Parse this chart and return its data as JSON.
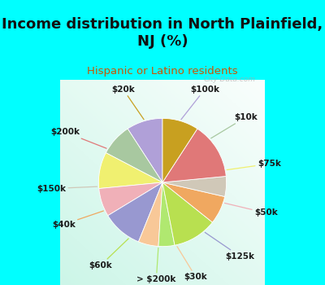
{
  "title": "Income distribution in North Plainfield,\nNJ (%)",
  "subtitle": "Hispanic or Latino residents",
  "title_color": "#111111",
  "subtitle_color": "#cc5500",
  "bg_cyan": "#00ffff",
  "watermark": "City-Data.com",
  "labels": [
    "$100k",
    "$10k",
    "$75k",
    "$50k",
    "$125k",
    "$30k",
    "> $200k",
    "$60k",
    "$40k",
    "$150k",
    "$200k",
    "$20k"
  ],
  "values": [
    9,
    8,
    9,
    7,
    10,
    5,
    4,
    11,
    7,
    5,
    14,
    9
  ],
  "colors": [
    "#b0a0d8",
    "#a8c8a0",
    "#f0f070",
    "#f0b0b8",
    "#9898d0",
    "#f8c898",
    "#b0e870",
    "#b8e050",
    "#f0a860",
    "#d0c8b8",
    "#e07878",
    "#c8a020"
  ],
  "start_angle": 90,
  "label_fontsize": 7.5,
  "label_fontweight": "bold",
  "label_color": "#1a1a1a",
  "title_fontsize": 13,
  "subtitle_fontsize": 9.5
}
